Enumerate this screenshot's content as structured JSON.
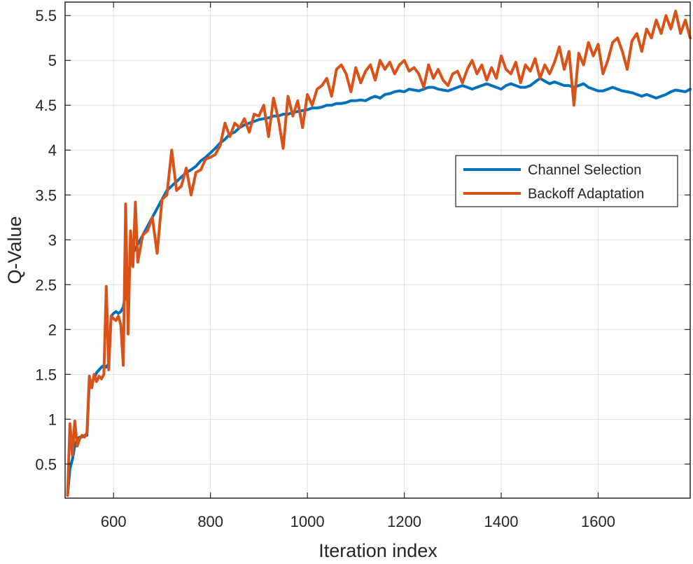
{
  "chart_data": {
    "type": "line",
    "title": "",
    "xlabel": "Iteration index",
    "ylabel": "Q-Value",
    "xlim": [
      500,
      1790
    ],
    "ylim": [
      0.12,
      5.65
    ],
    "xticks": [
      600,
      800,
      1000,
      1200,
      1400,
      1600
    ],
    "xtick_labels": [
      "600",
      "800",
      "1000",
      "1200",
      "1400",
      "1600"
    ],
    "yticks": [
      0.5,
      1,
      1.5,
      2,
      2.5,
      3,
      3.5,
      4,
      4.5,
      5,
      5.5
    ],
    "ytick_labels": [
      "0.5",
      "1",
      "1.5",
      "2",
      "2.5",
      "3",
      "3.5",
      "4",
      "4.5",
      "5",
      "5.5"
    ],
    "grid": true,
    "legend_position": "right, upper-middle",
    "series": [
      {
        "name": "Channel Selection",
        "color": "#0072BD",
        "x": [
          505,
          510,
          515,
          520,
          525,
          530,
          535,
          540,
          545,
          550,
          555,
          560,
          565,
          570,
          575,
          580,
          585,
          590,
          595,
          600,
          605,
          610,
          615,
          620,
          625,
          630,
          635,
          640,
          645,
          650,
          660,
          670,
          680,
          690,
          700,
          710,
          720,
          730,
          740,
          750,
          760,
          770,
          780,
          790,
          800,
          810,
          820,
          830,
          840,
          850,
          860,
          870,
          880,
          890,
          900,
          910,
          920,
          930,
          940,
          950,
          960,
          970,
          980,
          990,
          1000,
          1010,
          1020,
          1030,
          1040,
          1050,
          1060,
          1070,
          1080,
          1090,
          1100,
          1110,
          1120,
          1130,
          1140,
          1150,
          1160,
          1170,
          1180,
          1190,
          1200,
          1210,
          1220,
          1230,
          1240,
          1250,
          1260,
          1270,
          1280,
          1290,
          1300,
          1310,
          1320,
          1330,
          1340,
          1350,
          1360,
          1370,
          1380,
          1390,
          1400,
          1410,
          1420,
          1430,
          1440,
          1450,
          1460,
          1470,
          1480,
          1490,
          1500,
          1510,
          1520,
          1530,
          1540,
          1550,
          1560,
          1570,
          1580,
          1590,
          1600,
          1610,
          1620,
          1630,
          1640,
          1650,
          1660,
          1670,
          1680,
          1690,
          1700,
          1710,
          1720,
          1730,
          1740,
          1750,
          1760,
          1770,
          1780,
          1790
        ],
        "y": [
          0.15,
          0.45,
          0.55,
          0.7,
          0.78,
          0.8,
          0.8,
          0.82,
          0.82,
          1.4,
          1.42,
          1.45,
          1.52,
          1.55,
          1.58,
          1.6,
          1.58,
          1.62,
          2.15,
          2.18,
          2.2,
          2.18,
          2.2,
          2.25,
          2.4,
          2.6,
          2.75,
          2.85,
          2.9,
          2.95,
          3.05,
          3.15,
          3.25,
          3.35,
          3.45,
          3.55,
          3.6,
          3.65,
          3.7,
          3.75,
          3.78,
          3.82,
          3.88,
          3.92,
          3.97,
          4.02,
          4.08,
          4.12,
          4.18,
          4.2,
          4.25,
          4.28,
          4.3,
          4.32,
          4.34,
          4.35,
          4.36,
          4.38,
          4.38,
          4.4,
          4.4,
          4.42,
          4.43,
          4.44,
          4.45,
          4.47,
          4.47,
          4.48,
          4.5,
          4.5,
          4.52,
          4.52,
          4.53,
          4.55,
          4.55,
          4.56,
          4.55,
          4.58,
          4.6,
          4.58,
          4.62,
          4.63,
          4.65,
          4.66,
          4.65,
          4.68,
          4.67,
          4.66,
          4.68,
          4.7,
          4.7,
          4.68,
          4.67,
          4.66,
          4.68,
          4.7,
          4.72,
          4.7,
          4.68,
          4.7,
          4.72,
          4.74,
          4.72,
          4.7,
          4.68,
          4.72,
          4.74,
          4.72,
          4.7,
          4.7,
          4.72,
          4.76,
          4.8,
          4.77,
          4.74,
          4.76,
          4.74,
          4.72,
          4.72,
          4.7,
          4.72,
          4.74,
          4.7,
          4.68,
          4.66,
          4.66,
          4.68,
          4.7,
          4.68,
          4.66,
          4.65,
          4.64,
          4.62,
          4.6,
          4.62,
          4.6,
          4.58,
          4.6,
          4.62,
          4.65,
          4.67,
          4.66,
          4.65,
          4.68
        ]
      },
      {
        "name": "Backoff Adaptation",
        "color": "#D95319",
        "x": [
          505,
          510,
          515,
          520,
          525,
          530,
          535,
          540,
          545,
          550,
          555,
          560,
          565,
          570,
          575,
          580,
          585,
          590,
          595,
          600,
          605,
          610,
          615,
          620,
          625,
          630,
          635,
          640,
          645,
          650,
          660,
          670,
          680,
          690,
          700,
          710,
          720,
          730,
          740,
          750,
          760,
          770,
          780,
          790,
          800,
          810,
          820,
          830,
          840,
          850,
          860,
          870,
          880,
          890,
          900,
          910,
          920,
          930,
          940,
          950,
          960,
          970,
          980,
          990,
          1000,
          1010,
          1020,
          1030,
          1040,
          1050,
          1060,
          1070,
          1080,
          1090,
          1100,
          1110,
          1120,
          1130,
          1140,
          1150,
          1160,
          1170,
          1180,
          1190,
          1200,
          1210,
          1220,
          1230,
          1240,
          1250,
          1260,
          1270,
          1280,
          1290,
          1300,
          1310,
          1320,
          1330,
          1340,
          1350,
          1360,
          1370,
          1380,
          1390,
          1400,
          1410,
          1420,
          1430,
          1440,
          1450,
          1460,
          1470,
          1480,
          1490,
          1500,
          1510,
          1520,
          1530,
          1540,
          1550,
          1560,
          1570,
          1580,
          1590,
          1600,
          1610,
          1620,
          1630,
          1640,
          1650,
          1660,
          1670,
          1680,
          1690,
          1700,
          1710,
          1720,
          1730,
          1740,
          1750,
          1760,
          1770,
          1780,
          1790
        ],
        "y": [
          0.15,
          0.95,
          0.6,
          0.98,
          0.7,
          0.78,
          0.82,
          0.8,
          0.85,
          1.48,
          1.35,
          1.5,
          1.42,
          1.48,
          1.45,
          1.5,
          2.48,
          1.55,
          2.15,
          2.12,
          2.1,
          2.15,
          2.05,
          1.6,
          3.4,
          1.95,
          3.1,
          2.7,
          3.42,
          2.75,
          3.05,
          3.1,
          3.25,
          2.85,
          3.45,
          3.5,
          4.0,
          3.55,
          3.6,
          3.8,
          3.5,
          3.75,
          3.78,
          3.9,
          3.92,
          3.95,
          4.05,
          4.3,
          4.15,
          4.3,
          4.25,
          4.35,
          4.2,
          4.4,
          4.38,
          4.5,
          4.15,
          4.58,
          4.35,
          4.02,
          4.6,
          4.38,
          4.55,
          4.25,
          4.62,
          4.5,
          4.68,
          4.72,
          4.8,
          4.6,
          4.9,
          4.95,
          4.85,
          4.65,
          4.92,
          4.75,
          4.88,
          4.95,
          4.78,
          5.0,
          4.9,
          4.98,
          4.85,
          4.95,
          5.0,
          4.88,
          4.92,
          4.85,
          4.7,
          4.95,
          4.8,
          4.9,
          4.78,
          4.72,
          4.85,
          4.88,
          4.75,
          4.9,
          5.0,
          4.85,
          4.95,
          4.78,
          4.92,
          4.8,
          5.05,
          4.9,
          4.85,
          4.98,
          4.75,
          4.95,
          4.88,
          5.02,
          4.8,
          4.95,
          4.85,
          4.98,
          5.15,
          4.9,
          5.1,
          4.5,
          5.08,
          4.95,
          5.2,
          5.05,
          5.18,
          4.85,
          5.0,
          5.2,
          5.25,
          5.1,
          4.9,
          5.22,
          5.3,
          5.1,
          5.35,
          5.25,
          5.45,
          5.3,
          5.5,
          5.35,
          5.55,
          5.3,
          5.45,
          5.25
        ]
      }
    ]
  }
}
